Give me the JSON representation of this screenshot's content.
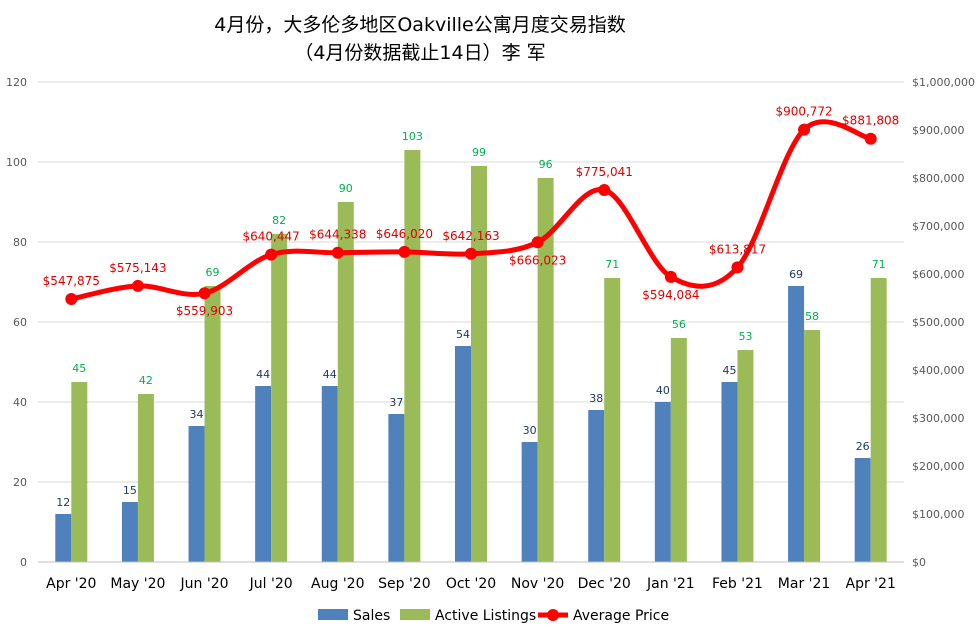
{
  "chart_data": {
    "type": "bar",
    "title": "4月份，大多伦多地区Oakville公寓月度交易指数",
    "subtitle": "（4月份数据截止14日）李 军",
    "categories": [
      "Apr '20",
      "May '20",
      "Jun '20",
      "Jul '20",
      "Aug '20",
      "Sep '20",
      "Oct '20",
      "Nov '20",
      "Dec '20",
      "Jan '21",
      "Feb '21",
      "Mar '21",
      "Apr '21"
    ],
    "series": [
      {
        "name": "Sales",
        "type": "bar",
        "axis": "left",
        "color": "#4f81bd",
        "values": [
          12,
          15,
          34,
          44,
          44,
          37,
          54,
          30,
          38,
          40,
          45,
          69,
          26
        ]
      },
      {
        "name": "Active Listings",
        "type": "bar",
        "axis": "left",
        "color": "#9bbb59",
        "values": [
          45,
          42,
          69,
          82,
          90,
          103,
          99,
          96,
          71,
          56,
          53,
          58,
          71
        ]
      },
      {
        "name": "Average Price",
        "type": "line",
        "axis": "right",
        "color": "#ff0000",
        "values": [
          547875,
          575143,
          559903,
          640447,
          644338,
          646020,
          642163,
          666023,
          775041,
          594084,
          613817,
          900772,
          881808
        ],
        "labels": [
          "$547,875",
          "$575,143",
          "$559,903",
          "$640,447",
          "$644,338",
          "$646,020",
          "$642,163",
          "$666,023",
          "$775,041",
          "$594,084",
          "$613,817",
          "$900,772",
          "$881,808"
        ]
      }
    ],
    "y_left": {
      "min": 0,
      "max": 120,
      "ticks": [
        0,
        20,
        40,
        60,
        80,
        100,
        120
      ]
    },
    "y_right": {
      "min": 0,
      "max": 1000000,
      "ticks": [
        0,
        100000,
        200000,
        300000,
        400000,
        500000,
        600000,
        700000,
        800000,
        900000,
        1000000
      ],
      "tick_labels": [
        "$0",
        "$100,000",
        "$200,000",
        "$300,000",
        "$400,000",
        "$500,000",
        "$600,000",
        "$700,000",
        "$800,000",
        "$900,000",
        "$1,000,000"
      ]
    },
    "grid": true,
    "legend_position": "bottom"
  }
}
